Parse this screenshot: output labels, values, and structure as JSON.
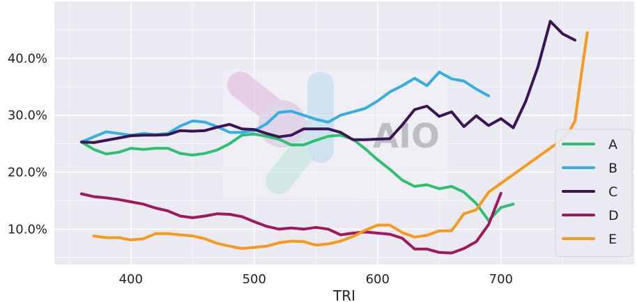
{
  "chart_data": {
    "type": "line",
    "xlabel": "TRI",
    "ylabel": "",
    "xlim": [
      338,
      808
    ],
    "ylim": [
      0.038,
      0.5
    ],
    "xticks": [
      400,
      500,
      600,
      700
    ],
    "yticks": [
      0.1,
      0.2,
      0.3,
      0.4
    ],
    "ytick_labels": [
      "10.0%",
      "20.0%",
      "30.0%",
      "40.0%"
    ],
    "grid": true,
    "legend_position": "bottom-right",
    "watermark": "AIO",
    "series": [
      {
        "name": "A",
        "color": "#2fbf73",
        "x": [
          360,
          370,
          380,
          390,
          400,
          410,
          420,
          430,
          440,
          450,
          460,
          470,
          480,
          490,
          500,
          510,
          520,
          530,
          540,
          550,
          560,
          570,
          580,
          590,
          600,
          610,
          620,
          630,
          640,
          650,
          660,
          670,
          680,
          690,
          700,
          710
        ],
        "y": [
          0.253,
          0.24,
          0.232,
          0.235,
          0.242,
          0.24,
          0.242,
          0.242,
          0.233,
          0.23,
          0.233,
          0.239,
          0.25,
          0.265,
          0.267,
          0.263,
          0.258,
          0.248,
          0.248,
          0.256,
          0.263,
          0.265,
          0.258,
          0.241,
          0.222,
          0.205,
          0.186,
          0.175,
          0.178,
          0.171,
          0.175,
          0.165,
          0.145,
          0.115,
          0.138,
          0.144
        ]
      },
      {
        "name": "B",
        "color": "#35aee3",
        "x": [
          360,
          370,
          380,
          390,
          400,
          410,
          420,
          430,
          440,
          450,
          460,
          470,
          480,
          490,
          500,
          510,
          520,
          530,
          540,
          550,
          560,
          570,
          580,
          590,
          600,
          610,
          620,
          630,
          640,
          650,
          660,
          670,
          680,
          690
        ],
        "y": [
          0.253,
          0.262,
          0.271,
          0.268,
          0.265,
          0.268,
          0.266,
          0.268,
          0.281,
          0.29,
          0.288,
          0.28,
          0.27,
          0.27,
          0.273,
          0.285,
          0.305,
          0.307,
          0.3,
          0.293,
          0.288,
          0.3,
          0.306,
          0.312,
          0.325,
          0.341,
          0.352,
          0.365,
          0.352,
          0.376,
          0.364,
          0.36,
          0.346,
          0.334
        ]
      },
      {
        "name": "C",
        "color": "#3b1456",
        "x": [
          360,
          370,
          380,
          390,
          400,
          410,
          420,
          430,
          440,
          450,
          460,
          470,
          480,
          490,
          500,
          510,
          520,
          530,
          540,
          550,
          560,
          570,
          580,
          590,
          600,
          610,
          620,
          630,
          640,
          650,
          660,
          670,
          680,
          690,
          700,
          710,
          720,
          730,
          740,
          750,
          760
        ],
        "y": [
          0.253,
          0.252,
          0.256,
          0.26,
          0.264,
          0.265,
          0.265,
          0.266,
          0.273,
          0.272,
          0.273,
          0.279,
          0.284,
          0.276,
          0.275,
          0.268,
          0.262,
          0.265,
          0.276,
          0.276,
          0.276,
          0.27,
          0.257,
          0.257,
          0.258,
          0.259,
          0.283,
          0.31,
          0.316,
          0.298,
          0.306,
          0.28,
          0.299,
          0.282,
          0.294,
          0.278,
          0.324,
          0.385,
          0.465,
          0.443,
          0.432
        ]
      },
      {
        "name": "D",
        "color": "#a0185e",
        "x": [
          360,
          370,
          380,
          390,
          400,
          410,
          420,
          430,
          440,
          450,
          460,
          470,
          480,
          490,
          500,
          510,
          520,
          530,
          540,
          550,
          560,
          570,
          580,
          590,
          600,
          610,
          620,
          630,
          640,
          650,
          660,
          670,
          680,
          690,
          700
        ],
        "y": [
          0.162,
          0.157,
          0.155,
          0.152,
          0.148,
          0.144,
          0.137,
          0.132,
          0.123,
          0.12,
          0.123,
          0.127,
          0.126,
          0.122,
          0.113,
          0.105,
          0.1,
          0.102,
          0.1,
          0.103,
          0.1,
          0.09,
          0.093,
          0.095,
          0.093,
          0.091,
          0.084,
          0.065,
          0.065,
          0.059,
          0.058,
          0.066,
          0.078,
          0.108,
          0.163
        ]
      },
      {
        "name": "E",
        "color": "#f7991c",
        "x": [
          370,
          380,
          390,
          400,
          410,
          420,
          430,
          440,
          450,
          460,
          470,
          480,
          490,
          500,
          510,
          520,
          530,
          540,
          550,
          560,
          570,
          580,
          590,
          600,
          610,
          620,
          630,
          640,
          650,
          660,
          670,
          680,
          690,
          745,
          755,
          760,
          765,
          770
        ],
        "y": [
          0.088,
          0.085,
          0.085,
          0.081,
          0.083,
          0.092,
          0.092,
          0.09,
          0.088,
          0.083,
          0.075,
          0.07,
          0.066,
          0.068,
          0.07,
          0.076,
          0.079,
          0.078,
          0.072,
          0.074,
          0.079,
          0.087,
          0.098,
          0.107,
          0.107,
          0.094,
          0.086,
          0.089,
          0.097,
          0.097,
          0.127,
          0.134,
          0.165,
          0.25,
          0.27,
          0.29,
          0.37,
          0.445
        ]
      }
    ]
  }
}
